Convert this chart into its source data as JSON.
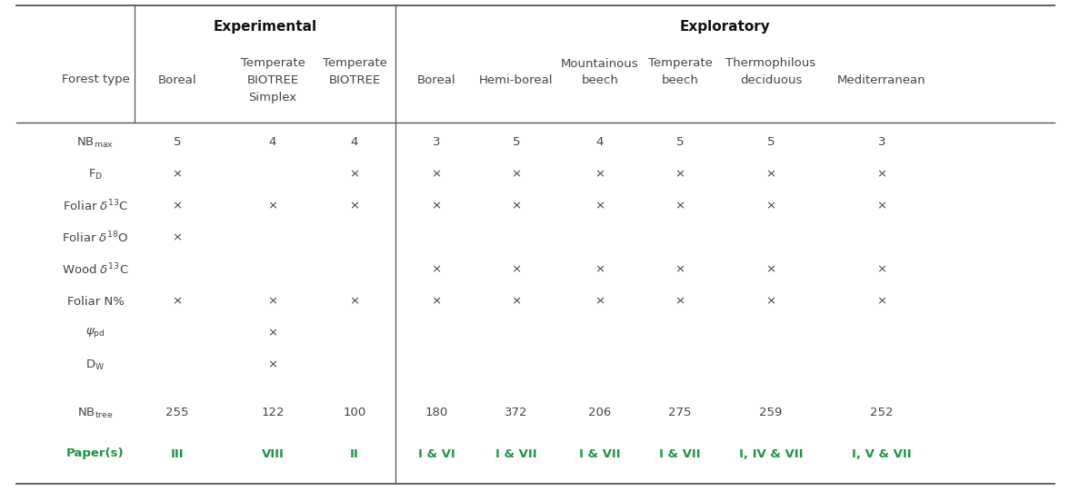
{
  "nb_max_row": [
    "5",
    "4",
    "4",
    "3",
    "5",
    "4",
    "5",
    "5",
    "3"
  ],
  "fd_row": [
    "×",
    "",
    "×",
    "×",
    "×",
    "×",
    "×",
    "×",
    "×"
  ],
  "foliar_d13c_row": [
    "×",
    "×",
    "×",
    "×",
    "×",
    "×",
    "×",
    "×",
    "×"
  ],
  "foliar_d18o_row": [
    "×",
    "",
    "",
    "",
    "",
    "",
    "",
    "",
    ""
  ],
  "wood_d13c_row": [
    "",
    "",
    "",
    "×",
    "×",
    "×",
    "×",
    "×",
    "×"
  ],
  "foliar_n_row": [
    "×",
    "×",
    "×",
    "×",
    "×",
    "×",
    "×",
    "×",
    "×"
  ],
  "psi_row": [
    "",
    "×",
    "",
    "",
    "",
    "",
    "",
    "",
    ""
  ],
  "dw_row": [
    "",
    "×",
    "",
    "",
    "",
    "",
    "",
    "",
    ""
  ],
  "nbtree_row": [
    "255",
    "122",
    "100",
    "180",
    "372",
    "206",
    "275",
    "259",
    "252"
  ],
  "papers_row": [
    "III",
    "VIII",
    "II",
    "I & VI",
    "I & VII",
    "I & VII",
    "I & VII",
    "I, IV & VII",
    "I, V & VII"
  ],
  "green_color": "#1a9641",
  "text_color": "#444444",
  "bg_color": "#ffffff",
  "line_color": "#555555"
}
